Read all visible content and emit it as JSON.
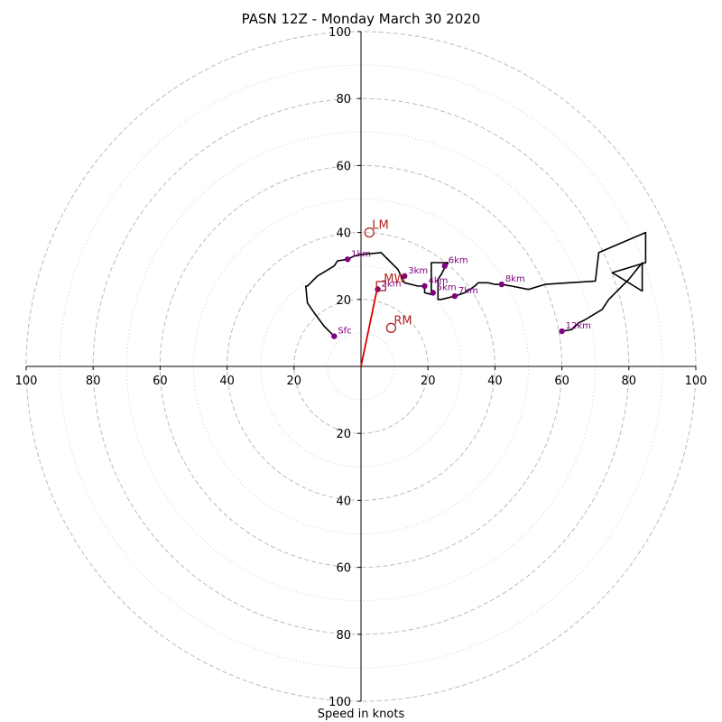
{
  "chart_data": {
    "type": "scatter",
    "title": "PASN 12Z - Monday March 30 2020",
    "xlabel": "Speed in knots",
    "ylabel": "",
    "xlim": [
      -100,
      100
    ],
    "ylim": [
      -100,
      100
    ],
    "grid": true,
    "major_rings": [
      20,
      40,
      60,
      80,
      100
    ],
    "minor_rings": [
      10,
      30,
      50,
      70,
      90
    ],
    "x_ticks": [
      "100",
      "80",
      "60",
      "40",
      "20",
      "20",
      "40",
      "60",
      "80",
      "100"
    ],
    "x_tick_values": [
      -100,
      -80,
      -60,
      -40,
      -20,
      20,
      40,
      60,
      80,
      100
    ],
    "y_ticks": [
      "100",
      "80",
      "60",
      "40",
      "20",
      "20",
      "40",
      "60",
      "80",
      "100"
    ],
    "y_tick_values": [
      100,
      80,
      60,
      40,
      20,
      -20,
      -40,
      -60,
      -80,
      -100
    ],
    "hodograph": [
      [
        -8,
        9
      ],
      [
        -11,
        12
      ],
      [
        -14,
        16
      ],
      [
        -16,
        19
      ],
      [
        -16.5,
        24
      ],
      [
        -16,
        24
      ],
      [
        -13,
        27
      ],
      [
        -8,
        30
      ],
      [
        -7,
        31.5
      ],
      [
        -4,
        32
      ],
      [
        -2,
        33
      ],
      [
        1,
        33.5
      ],
      [
        6,
        34
      ],
      [
        9,
        31
      ],
      [
        11,
        29
      ],
      [
        12,
        27
      ],
      [
        13,
        25
      ],
      [
        17,
        24
      ],
      [
        19,
        24
      ],
      [
        19,
        22
      ],
      [
        21,
        21.5
      ],
      [
        21,
        31
      ],
      [
        26,
        31
      ],
      [
        25,
        29.5
      ],
      [
        24,
        27.5
      ],
      [
        23,
        26
      ],
      [
        23,
        20
      ],
      [
        24,
        20
      ],
      [
        28,
        21
      ],
      [
        31,
        22
      ],
      [
        34,
        24
      ],
      [
        35,
        25
      ],
      [
        38,
        25
      ],
      [
        40,
        24.5
      ],
      [
        42,
        24.5
      ],
      [
        45,
        24
      ],
      [
        50,
        23
      ],
      [
        55,
        24.5
      ],
      [
        70,
        25.5
      ],
      [
        71,
        34
      ],
      [
        85,
        40
      ],
      [
        85,
        31
      ],
      [
        75,
        28
      ],
      [
        84,
        22.5
      ],
      [
        84,
        31
      ],
      [
        80,
        26
      ],
      [
        74,
        20
      ],
      [
        72,
        17
      ],
      [
        67,
        14
      ],
      [
        65,
        13
      ],
      [
        63,
        11
      ],
      [
        60,
        10.5
      ]
    ],
    "height_markers": [
      {
        "label": "Sfc",
        "x": -8,
        "y": 9
      },
      {
        "label": "1km",
        "x": -4,
        "y": 32
      },
      {
        "label": "2km",
        "x": 5,
        "y": 23
      },
      {
        "label": "3km",
        "x": 13,
        "y": 27
      },
      {
        "label": "4km",
        "x": 19,
        "y": 24
      },
      {
        "label": "5km",
        "x": 21.5,
        "y": 22
      },
      {
        "label": "6km",
        "x": 25,
        "y": 30
      },
      {
        "label": "7km",
        "x": 28,
        "y": 21
      },
      {
        "label": "8km",
        "x": 42,
        "y": 24.5
      },
      {
        "label": "12km",
        "x": 60,
        "y": 10.5
      }
    ],
    "storm_motion": [
      {
        "label": "LM",
        "x": 2.5,
        "y": 40,
        "shape": "circle"
      },
      {
        "label": "RM",
        "x": 9,
        "y": 11.5,
        "shape": "circle"
      },
      {
        "label": "MW",
        "x": 6,
        "y": 24,
        "shape": "square"
      }
    ],
    "shear_vector": {
      "x0": 0,
      "y0": 0,
      "x1": 5,
      "y1": 24
    },
    "colors": {
      "hodograph": "#000000",
      "marker": "#800080",
      "motion": "#b22222",
      "shear": "#dd0000",
      "grid": "#bbbbbb",
      "axes": "#000000"
    }
  }
}
